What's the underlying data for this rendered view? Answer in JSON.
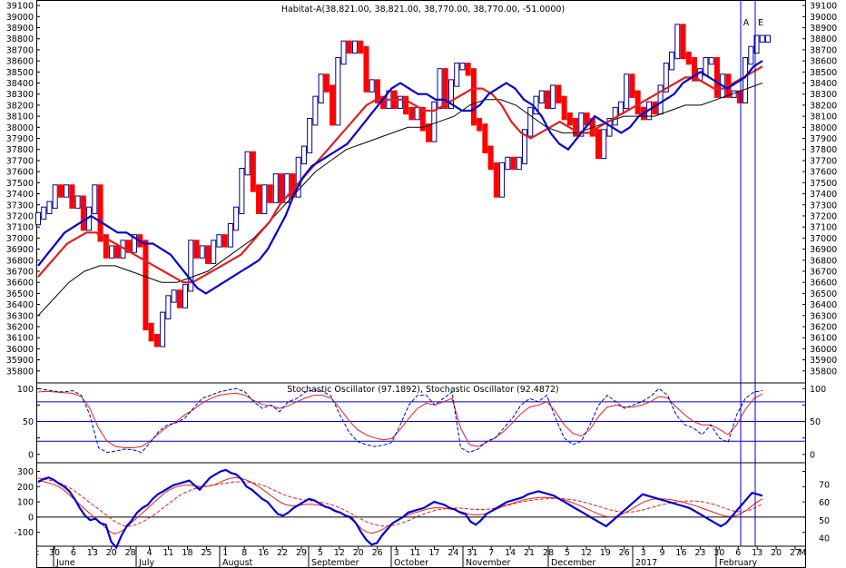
{
  "chart_data": [
    {
      "type": "candlestick",
      "title": "Habitat-A(38,821.00, 38,821.00, 38,770.00, 38,770.00, -51.0000)",
      "ylim": [
        35700,
        39150
      ],
      "yticks": [
        35800,
        35900,
        36000,
        36100,
        36200,
        36300,
        36400,
        36500,
        36600,
        36700,
        36800,
        36900,
        37000,
        37100,
        37200,
        37300,
        37400,
        37500,
        37600,
        37700,
        37800,
        37900,
        38000,
        38100,
        38200,
        38300,
        38400,
        38500,
        38600,
        38700,
        38800,
        38900,
        39000,
        39100
      ],
      "ytick_labels": [
        "35800",
        "35900",
        "36000",
        "36100",
        "36200",
        "36300",
        "36400",
        "36500",
        "36600",
        "36700",
        "36800",
        "36900",
        "37000",
        "37100",
        "37200",
        "37300",
        "37400",
        "37500",
        "37600",
        "37700",
        "37800",
        "37900",
        "38000",
        "38100",
        "38200",
        "38300",
        "38400",
        "38500",
        "38600",
        "38700",
        "38800",
        "38900",
        "39000",
        "39100"
      ],
      "series_shape": [
        37200,
        37250,
        37300,
        37450,
        37400,
        37450,
        37300,
        37350,
        37100,
        37250,
        37450,
        37000,
        36850,
        36900,
        36850,
        36950,
        36900,
        37000,
        36950,
        36200,
        36100,
        36050,
        36300,
        36450,
        36500,
        36400,
        36550,
        36950,
        36850,
        36900,
        36800,
        36950,
        37000,
        36950,
        37100,
        37250,
        37600,
        37750,
        37450,
        37250,
        37450,
        37350,
        37550,
        37350,
        37550,
        37400,
        37700,
        37800,
        38050,
        38250,
        38450,
        38350,
        38050,
        38600,
        38750,
        38700,
        38750,
        38700,
        38350,
        38400,
        38250,
        38200,
        38300,
        38200,
        38250,
        38150,
        38100,
        38150,
        38000,
        37900,
        38200,
        38500,
        38200,
        38400,
        38550,
        38550,
        38500,
        38050,
        38000,
        37800,
        37650,
        37400,
        37650,
        37700,
        37650,
        37700,
        37950,
        38150,
        38250,
        38300,
        38200,
        38350,
        38250,
        38100,
        38050,
        37950,
        38100,
        38050,
        37950,
        37750,
        37950,
        38050,
        38150,
        38200,
        38450,
        38300,
        38150,
        38100,
        38200,
        38150,
        38350,
        38550,
        38650,
        38900,
        38650,
        38600,
        38450,
        38500,
        38600,
        38600,
        38300,
        38450,
        38300,
        38300,
        38250,
        38600,
        38700,
        38800,
        38800,
        38800
      ],
      "ma_blue": [
        36750,
        36850,
        36950,
        37050,
        37100,
        37150,
        37200,
        37150,
        37100,
        37050,
        37050,
        37000,
        36950,
        36950,
        36900,
        36850,
        36750,
        36650,
        36550,
        36500,
        36550,
        36600,
        36650,
        36700,
        36750,
        36800,
        36900,
        37050,
        37200,
        37400,
        37550,
        37650,
        37700,
        37750,
        37800,
        37850,
        37950,
        38050,
        38150,
        38250,
        38350,
        38400,
        38350,
        38300,
        38300,
        38250,
        38250,
        38200,
        38150,
        38150,
        38200,
        38300,
        38350,
        38400,
        38350,
        38250,
        38200,
        38100,
        37950,
        37850,
        37800,
        37900,
        38000,
        38100,
        38050,
        38000,
        37950,
        38000,
        38100,
        38150,
        38200,
        38250,
        38300,
        38400,
        38450,
        38500,
        38450,
        38400,
        38350,
        38400,
        38450,
        38550,
        38600
      ],
      "ma_red": [
        36650,
        36750,
        36850,
        36950,
        37000,
        37050,
        37050,
        37000,
        36950,
        36900,
        36850,
        36800,
        36750,
        36700,
        36650,
        36600,
        36600,
        36650,
        36700,
        36750,
        36800,
        36850,
        36950,
        37050,
        37150,
        37300,
        37400,
        37500,
        37600,
        37700,
        37800,
        37900,
        38000,
        38100,
        38200,
        38250,
        38250,
        38250,
        38250,
        38200,
        38150,
        38150,
        38200,
        38250,
        38300,
        38350,
        38350,
        38300,
        38200,
        38050,
        37950,
        37900,
        37950,
        38000,
        38050,
        38000,
        37950,
        37950,
        38000,
        38050,
        38100,
        38150,
        38200,
        38250,
        38300,
        38350,
        38400,
        38450,
        38450,
        38400,
        38350,
        38350,
        38400,
        38450,
        38500,
        38550
      ],
      "ma_black": [
        36300,
        36450,
        36600,
        36700,
        36750,
        36750,
        36700,
        36650,
        36600,
        36600,
        36650,
        36700,
        36800,
        36900,
        37000,
        37150,
        37300,
        37450,
        37600,
        37700,
        37800,
        37850,
        37900,
        37950,
        38000,
        38000,
        38050,
        38100,
        38200,
        38250,
        38250,
        38200,
        38100,
        38000,
        37950,
        37950,
        38000,
        38050,
        38100,
        38100,
        38100,
        38150,
        38200,
        38200,
        38250,
        38300,
        38350,
        38400
      ]
    },
    {
      "type": "line",
      "title": "Stochastic Oscillator (97.1892), Stochastic Oscillator (92.4872)",
      "ylim": [
        -10,
        106
      ],
      "yticks": [
        0,
        25,
        50,
        75,
        100
      ],
      "ytick_labels": [
        "0",
        "",
        "50",
        "",
        "100"
      ],
      "hlines": [
        20,
        50,
        80
      ],
      "series": [
        {
          "values": [
            100,
            98,
            96,
            95,
            97,
            90,
            60,
            10,
            3,
            5,
            8,
            7,
            3,
            18,
            35,
            45,
            48,
            55,
            70,
            85,
            90,
            95,
            98,
            100,
            95,
            80,
            70,
            75,
            65,
            80,
            85,
            95,
            98,
            96,
            88,
            60,
            35,
            20,
            15,
            12,
            14,
            18,
            45,
            75,
            90,
            90,
            75,
            85,
            95,
            10,
            3,
            8,
            20,
            25,
            40,
            55,
            75,
            85,
            80,
            90,
            55,
            25,
            15,
            20,
            45,
            75,
            90,
            80,
            70,
            75,
            80,
            88,
            100,
            90,
            60,
            45,
            40,
            30,
            45,
            25,
            18,
            60,
            85,
            95,
            97
          ]
        },
        {
          "values": [
            95,
            96,
            95,
            94,
            93,
            88,
            70,
            40,
            20,
            12,
            10,
            10,
            12,
            20,
            32,
            42,
            50,
            60,
            68,
            78,
            85,
            90,
            92,
            93,
            90,
            82,
            76,
            74,
            70,
            74,
            80,
            86,
            90,
            90,
            85,
            70,
            52,
            38,
            30,
            25,
            22,
            24,
            38,
            55,
            70,
            78,
            75,
            80,
            85,
            40,
            15,
            12,
            18,
            25,
            35,
            48,
            62,
            72,
            75,
            80,
            65,
            45,
            32,
            28,
            38,
            58,
            72,
            75,
            72,
            72,
            75,
            80,
            88,
            86,
            72,
            60,
            50,
            45,
            45,
            38,
            30,
            45,
            68,
            85,
            92
          ]
        }
      ]
    },
    {
      "type": "line",
      "ylim": [
        -185,
        345
      ],
      "yticks": [
        -100,
        0,
        100,
        200,
        300
      ],
      "ytick_labels": [
        "-100",
        "0",
        "100",
        "200",
        "300"
      ],
      "right_ticks": [
        40,
        50,
        60,
        70
      ],
      "zero_line": 0,
      "series": [
        {
          "values": [
            230,
            250,
            260,
            245,
            220,
            200,
            170,
            120,
            60,
            10,
            -20,
            -10,
            -40,
            -50,
            -160,
            -200,
            -120,
            -60,
            -20,
            30,
            60,
            80,
            120,
            150,
            170,
            190,
            210,
            220,
            230,
            240,
            210,
            180,
            220,
            260,
            280,
            300,
            310,
            290,
            280,
            250,
            200,
            180,
            150,
            120,
            100,
            60,
            20,
            10,
            30,
            60,
            80,
            100,
            120,
            110,
            90,
            70,
            60,
            40,
            30,
            10,
            0,
            -40,
            -100,
            -150,
            -180,
            -170,
            -120,
            -80,
            -40,
            -20,
            0,
            30,
            40,
            50,
            60,
            80,
            100,
            90,
            80,
            60,
            50,
            30,
            20,
            -30,
            -50,
            -20,
            20,
            40,
            60,
            80,
            100,
            110,
            120,
            130,
            150,
            160,
            170,
            160,
            150,
            140,
            120,
            100,
            80,
            60,
            40,
            20,
            0,
            -20,
            -40,
            -60,
            -30,
            0,
            30,
            60,
            90,
            120,
            150,
            140,
            130,
            120,
            110,
            100,
            90,
            80,
            70,
            60,
            40,
            20,
            0,
            -20,
            -40,
            -60,
            -40,
            0,
            40,
            80,
            120,
            160,
            150,
            140
          ]
        },
        {
          "values": [
            240,
            235,
            225,
            215,
            200,
            180,
            150,
            120,
            90,
            60,
            30,
            0,
            -30,
            -60,
            -90,
            -110,
            -100,
            -80,
            -50,
            -20,
            10,
            40,
            70,
            100,
            130,
            160,
            180,
            195,
            205,
            210,
            210,
            205,
            200,
            200,
            205,
            215,
            230,
            245,
            255,
            260,
            255,
            245,
            230,
            210,
            190,
            165,
            140,
            115,
            95,
            80,
            75,
            75,
            80,
            85,
            85,
            80,
            75,
            65,
            55,
            40,
            25,
            5,
            -20,
            -50,
            -80,
            -100,
            -105,
            -95,
            -80,
            -60,
            -40,
            -20,
            0,
            15,
            25,
            35,
            45,
            55,
            60,
            62,
            60,
            55,
            50,
            40,
            30,
            20,
            15,
            15,
            20,
            30,
            45,
            60,
            75,
            85,
            95,
            105,
            115,
            120,
            125,
            128,
            130,
            128,
            125,
            120,
            112,
            100,
            88,
            75,
            60,
            45,
            30,
            15,
            5,
            0,
            5,
            15,
            30,
            50,
            70,
            90,
            105,
            115,
            120,
            120,
            118,
            114,
            108,
            100,
            92,
            82,
            72,
            60,
            48,
            36,
            24,
            12,
            5,
            5,
            12,
            28,
            50,
            75,
            100,
            120
          ]
        },
        {
          "values": [
            255,
            250,
            245,
            238,
            228,
            215,
            198,
            178,
            155,
            130,
            105,
            80,
            55,
            30,
            5,
            -20,
            -40,
            -55,
            -60,
            -55,
            -45,
            -30,
            -10,
            10,
            35,
            60,
            85,
            110,
            135,
            155,
            170,
            183,
            193,
            200,
            205,
            210,
            215,
            220,
            225,
            230,
            232,
            232,
            230,
            225,
            218,
            208,
            195,
            180,
            165,
            150,
            138,
            128,
            120,
            114,
            110,
            106,
            101,
            95,
            88,
            78,
            66,
            52,
            36,
            18,
            0,
            -18,
            -34,
            -46,
            -54,
            -58,
            -58,
            -54,
            -46,
            -36,
            -24,
            -10,
            5,
            18,
            30,
            40,
            48,
            54,
            58,
            60,
            60,
            58,
            55,
            52,
            50,
            50,
            52,
            56,
            62,
            70,
            78,
            86,
            94,
            101,
            107,
            112,
            116,
            119,
            121,
            122,
            122,
            121,
            118,
            114,
            108,
            100,
            92,
            82,
            72,
            62,
            52,
            44,
            38,
            34,
            33,
            35,
            40,
            47,
            56,
            65,
            74,
            82,
            89,
            95,
            100,
            104,
            106,
            106,
            104,
            100,
            94,
            86,
            76,
            64,
            52,
            42,
            36,
            36,
            42,
            54,
            70,
            86
          ]
        }
      ]
    }
  ],
  "x_axis": {
    "day_ticks": [
      "30",
      "6",
      "13",
      "20",
      "28",
      "4",
      "11",
      "18",
      "25",
      "1",
      "8",
      "16",
      "22",
      "29",
      "5",
      "12",
      "20",
      "26",
      "3",
      "11",
      "17",
      "24",
      "31",
      "7",
      "14",
      "21",
      "28",
      "5",
      "12",
      "19",
      "26",
      "3",
      "9",
      "16",
      "23",
      "30",
      "6",
      "13",
      "20",
      "27"
    ],
    "month_labels": [
      "June",
      "July",
      "August",
      "September",
      "October",
      "November",
      "December",
      "2017",
      "February"
    ],
    "first_tick": ":",
    "last_tick": "M"
  },
  "markers": [
    "A",
    "E"
  ],
  "colors": {
    "price_up": "#00008b",
    "price_down": "#ff0000",
    "ma_fast": "#0000cd",
    "ma_mid": "#e02020",
    "ma_slow": "#000000",
    "reference_line": "#0000cd",
    "marker_line": "#0000cd",
    "grid_frame": "#000000"
  }
}
